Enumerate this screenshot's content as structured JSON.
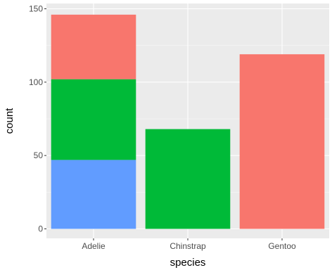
{
  "chart_data": {
    "type": "bar",
    "stacked": true,
    "xlabel": "species",
    "ylabel": "count",
    "categories": [
      "Adelie",
      "Chinstrap",
      "Gentoo"
    ],
    "ylim": [
      0,
      153
    ],
    "yticks": [
      0,
      50,
      100,
      150
    ],
    "grid": true,
    "legend": "none",
    "series": [
      {
        "color": "#619CFF",
        "values": [
          47,
          0,
          0
        ]
      },
      {
        "color": "#00BA38",
        "values": [
          55,
          68,
          0
        ]
      },
      {
        "color": "#F8766D",
        "values": [
          44,
          0,
          119
        ]
      }
    ]
  },
  "colors": {
    "panel_background": "#EBEBEB",
    "grid_major": "#FFFFFF",
    "grid_minor": "#F5F5F5",
    "tick_mark": "#333333"
  }
}
